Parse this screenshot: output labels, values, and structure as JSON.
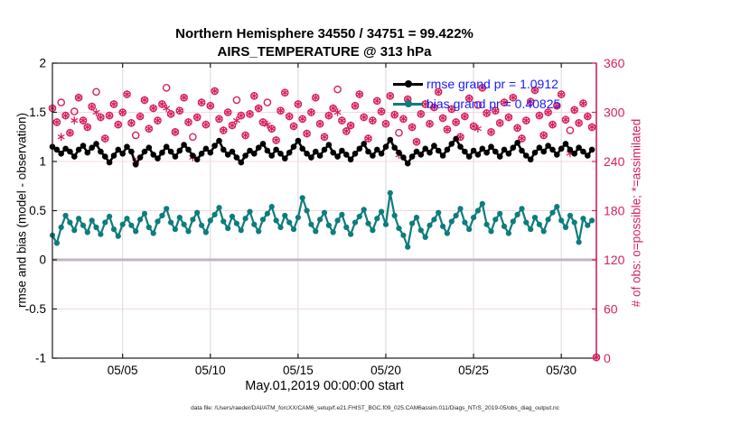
{
  "footer": "data file: /Users/raeder/DAI/ATM_forcXX/CAM6_setup/f.e21.FHIST_BGC.f09_025.CAM6assim.011/Diags_NTrS_2019-05/obs_diag_output.nc",
  "colors": {
    "rmse": "#000000",
    "bias": "#0e7c7c",
    "counts": "#d6215c",
    "legend_text": "#1a1aff",
    "grid_vertical": "#d8d8d8",
    "grid_horizontal": "#f4d7de",
    "zero_line": "#c2b6c2",
    "axis_box": "#1a1a1a"
  },
  "chart_data": {
    "type": "line",
    "title_line1": "Northern Hemisphere 34550 / 34751 = 99.422%",
    "title_line2": "AIRS_TEMPERATURE @ 313 hPa",
    "xlabel": "May.01,2019 00:00:00 start",
    "ylabel_left": "rmse and bias (model - observation)",
    "ylabel_right": "# of obs: o=possible; *=assimilated",
    "xlim_days": [
      0,
      31
    ],
    "ylim_left": [
      -1,
      2
    ],
    "ylim_right": [
      0,
      360
    ],
    "grid": "on",
    "legend_position": "top-right-inside",
    "t_step_days": 0.25,
    "x_ticks": [
      {
        "day": 4,
        "label": "05/05"
      },
      {
        "day": 9,
        "label": "05/10"
      },
      {
        "day": 14,
        "label": "05/15"
      },
      {
        "day": 19,
        "label": "05/20"
      },
      {
        "day": 24,
        "label": "05/25"
      },
      {
        "day": 29,
        "label": "05/30"
      }
    ],
    "y_ticks_left": [
      {
        "v": -1,
        "label": "-1"
      },
      {
        "v": -0.5,
        "label": "-0.5"
      },
      {
        "v": 0,
        "label": "0"
      },
      {
        "v": 0.5,
        "label": "0.5"
      },
      {
        "v": 1,
        "label": "1"
      },
      {
        "v": 1.5,
        "label": "1.5"
      },
      {
        "v": 2,
        "label": "2"
      }
    ],
    "y_ticks_right": [
      {
        "v": 0,
        "label": "0"
      },
      {
        "v": 60,
        "label": "60"
      },
      {
        "v": 120,
        "label": "120"
      },
      {
        "v": 180,
        "label": "180"
      },
      {
        "v": 240,
        "label": "240"
      },
      {
        "v": 300,
        "label": "300"
      },
      {
        "v": 360,
        "label": "360"
      }
    ],
    "zero_reference_left": 0,
    "legend": [
      {
        "label": "rmse grand pr = 1.0912",
        "series": "rmse"
      },
      {
        "label": "bias grand pr = 0.40825",
        "series": "bias"
      }
    ],
    "series": [
      {
        "name": "rmse",
        "axis": "left",
        "grand_mean": 1.0912,
        "values": [
          1.15,
          1.12,
          1.08,
          1.13,
          1.1,
          1.05,
          1.12,
          1.16,
          1.09,
          1.14,
          1.18,
          1.1,
          1.05,
          0.99,
          1.06,
          1.12,
          1.08,
          1.15,
          1.1,
          0.97,
          1.04,
          1.1,
          1.14,
          1.07,
          1.03,
          1.09,
          1.15,
          1.1,
          1.05,
          1.11,
          1.17,
          1.12,
          1.06,
          1.02,
          1.08,
          1.13,
          1.09,
          1.16,
          1.21,
          1.12,
          1.07,
          1.1,
          1.04,
          0.99,
          1.06,
          1.11,
          1.08,
          1.14,
          1.18,
          1.11,
          1.06,
          1.12,
          1.08,
          1.03,
          1.09,
          1.15,
          1.21,
          1.13,
          1.08,
          1.04,
          1.1,
          1.06,
          1.12,
          1.17,
          1.09,
          1.05,
          1.11,
          1.07,
          1.02,
          1.08,
          1.13,
          1.18,
          1.1,
          1.06,
          1.12,
          1.08,
          1.15,
          1.22,
          1.14,
          1.09,
          1.04,
          0.98,
          1.05,
          1.1,
          1.07,
          1.13,
          1.09,
          1.16,
          1.11,
          1.06,
          1.12,
          1.18,
          1.23,
          1.15,
          1.1,
          1.05,
          1.11,
          1.07,
          1.13,
          1.09,
          1.15,
          1.1,
          1.05,
          1.12,
          1.08,
          1.14,
          1.19,
          1.11,
          1.06,
          1.02,
          1.09,
          1.14,
          1.1,
          1.16,
          1.12,
          1.07,
          1.13,
          1.18,
          1.12,
          1.08,
          1.14,
          1.1,
          1.06,
          1.12
        ]
      },
      {
        "name": "bias",
        "axis": "left",
        "grand_mean": 0.40825,
        "values": [
          0.25,
          0.17,
          0.33,
          0.45,
          0.38,
          0.3,
          0.42,
          0.35,
          0.28,
          0.4,
          0.33,
          0.26,
          0.38,
          0.44,
          0.31,
          0.24,
          0.36,
          0.42,
          0.35,
          0.29,
          0.41,
          0.47,
          0.33,
          0.27,
          0.39,
          0.45,
          0.52,
          0.38,
          0.31,
          0.43,
          0.36,
          0.29,
          0.41,
          0.48,
          0.35,
          0.28,
          0.4,
          0.46,
          0.53,
          0.39,
          0.32,
          0.44,
          0.37,
          0.3,
          0.42,
          0.49,
          0.36,
          0.29,
          0.41,
          0.47,
          0.54,
          0.4,
          0.33,
          0.45,
          0.38,
          0.31,
          0.43,
          0.63,
          0.5,
          0.36,
          0.29,
          0.41,
          0.48,
          0.35,
          0.28,
          0.4,
          0.46,
          0.33,
          0.26,
          0.38,
          0.44,
          0.51,
          0.37,
          0.3,
          0.42,
          0.49,
          0.36,
          0.68,
          0.45,
          0.32,
          0.25,
          0.13,
          0.37,
          0.43,
          0.3,
          0.23,
          0.35,
          0.41,
          0.48,
          0.34,
          0.27,
          0.39,
          0.45,
          0.52,
          0.38,
          0.31,
          0.43,
          0.5,
          0.57,
          0.36,
          0.29,
          0.41,
          0.47,
          0.34,
          0.27,
          0.39,
          0.46,
          0.52,
          0.38,
          0.31,
          0.43,
          0.36,
          0.29,
          0.41,
          0.48,
          0.54,
          0.4,
          0.33,
          0.45,
          0.38,
          0.18,
          0.42,
          0.35,
          0.4
        ]
      }
    ],
    "counts": {
      "axis": "right",
      "possible_total": 34751,
      "assimilated_total": 34550,
      "possible": [
        305,
        288,
        312,
        296,
        275,
        301,
        318,
        290,
        282,
        307,
        325,
        294,
        268,
        296,
        310,
        285,
        300,
        322,
        287,
        272,
        295,
        315,
        280,
        305,
        290,
        310,
        330,
        298,
        276,
        302,
        318,
        288,
        270,
        294,
        312,
        285,
        308,
        326,
        292,
        278,
        300,
        284,
        315,
        296,
        272,
        298,
        320,
        305,
        288,
        312,
        280,
        266,
        302,
        324,
        295,
        283,
        310,
        292,
        274,
        300,
        318,
        286,
        270,
        296,
        305,
        328,
        290,
        277,
        284,
        308,
        322,
        294,
        268,
        290,
        314,
        301,
        286,
        320,
        297,
        275,
        292,
        316,
        282,
        264,
        298,
        310,
        286,
        306,
        325,
        293,
        279,
        304,
        288,
        270,
        295,
        317,
        283,
        309,
        330,
        299,
        276,
        302,
        287,
        312,
        294,
        318,
        281,
        268,
        290,
        313,
        327,
        296,
        272,
        300,
        285,
        308,
        322,
        291,
        278,
        303,
        287,
        311,
        295,
        282,
        1
      ],
      "assimilated": [
        305,
        288,
        270,
        296,
        275,
        290,
        318,
        290,
        282,
        307,
        300,
        294,
        268,
        296,
        310,
        285,
        300,
        322,
        287,
        240,
        295,
        315,
        280,
        305,
        290,
        310,
        305,
        298,
        276,
        302,
        318,
        288,
        245,
        294,
        312,
        285,
        308,
        326,
        292,
        278,
        300,
        284,
        290,
        296,
        272,
        298,
        320,
        305,
        288,
        285,
        280,
        266,
        302,
        324,
        295,
        283,
        310,
        292,
        274,
        300,
        318,
        286,
        270,
        296,
        305,
        300,
        290,
        277,
        284,
        308,
        322,
        294,
        268,
        290,
        314,
        301,
        286,
        320,
        297,
        248,
        292,
        316,
        282,
        264,
        298,
        310,
        286,
        306,
        325,
        293,
        279,
        304,
        288,
        270,
        295,
        317,
        283,
        280,
        330,
        299,
        276,
        302,
        287,
        312,
        294,
        318,
        281,
        268,
        290,
        313,
        327,
        296,
        272,
        300,
        285,
        308,
        322,
        291,
        250,
        303,
        287,
        311,
        295,
        282,
        1
      ]
    }
  }
}
